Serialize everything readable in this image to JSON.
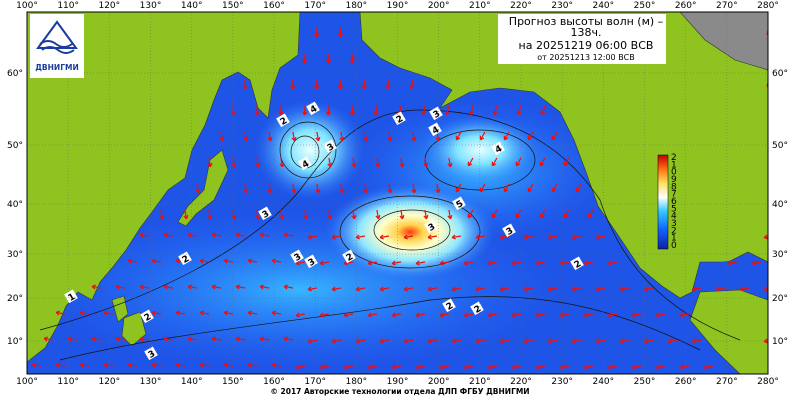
{
  "header": {
    "title_lines": [
      "Прогноз высоты волн (м) –",
      "138ч.",
      "на 20251219 06:00 ВСВ",
      "от 20251213 12:00 ВСВ"
    ]
  },
  "logo": {
    "text": "ДВНИГМИ"
  },
  "lon_labels": [
    "100°",
    "110°",
    "120°",
    "130°",
    "140°",
    "150°",
    "160°",
    "170°",
    "180°",
    "190°",
    "200°",
    "210°",
    "220°",
    "230°",
    "240°",
    "250°",
    "260°",
    "270°",
    "280°"
  ],
  "lat_labels": [
    "60°",
    "50°",
    "40°",
    "30°",
    "20°",
    "10°"
  ],
  "colorbar_labels": [
    "2",
    "1",
    "0",
    "9",
    "8",
    "7",
    "6",
    "5",
    "4",
    "3",
    "2",
    "1",
    "0"
  ],
  "contour_labels": [
    "4",
    "2",
    "4",
    "3",
    "5",
    "2",
    "3",
    "4",
    "4",
    "3",
    "2",
    "3",
    "3",
    "2",
    "3",
    "2",
    "3",
    "2",
    "2",
    "1",
    "2",
    "3"
  ],
  "footer": "© 2017 Авторские технологии отдела ДЛП ФГБУ ДВНИГМИ"
}
